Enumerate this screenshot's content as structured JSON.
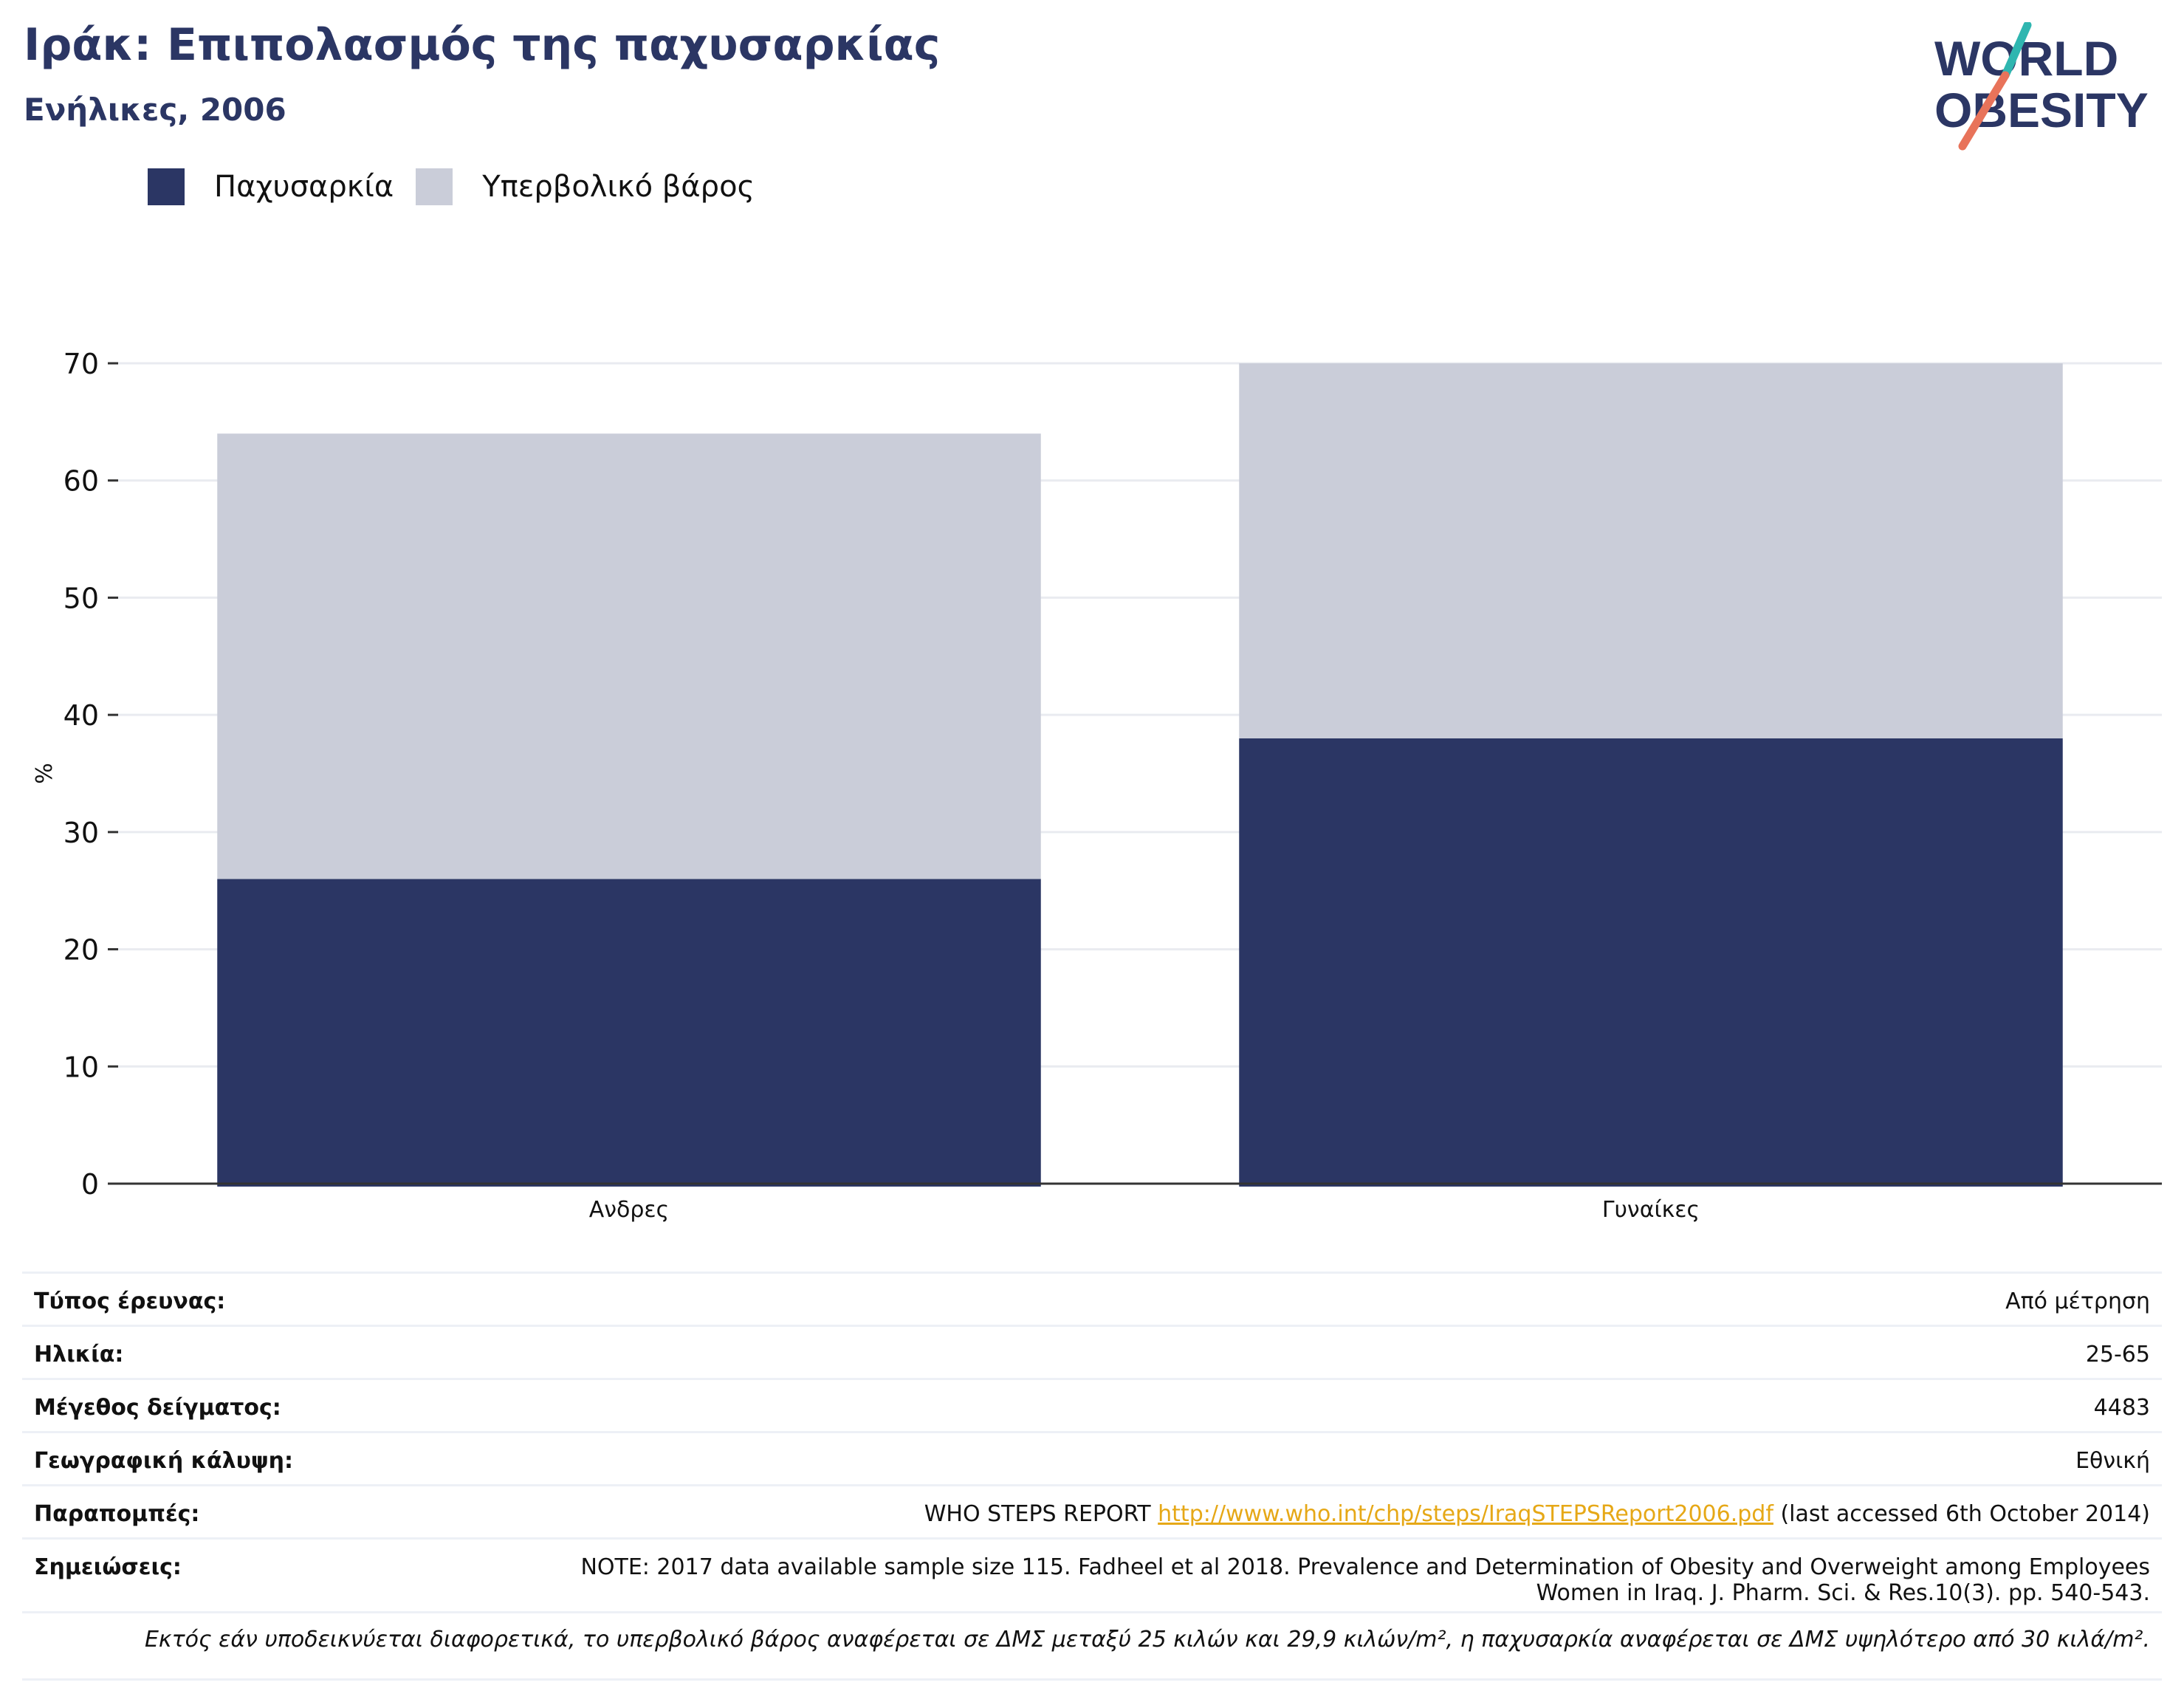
{
  "header": {
    "title": "Ιράκ: Επιπολασμός της παχυσαρκίας",
    "subtitle": "Ενήλικες, 2006"
  },
  "logo": {
    "line1": "WORLD",
    "line2": "OBESITY"
  },
  "colors": {
    "obesity": "#2b3664",
    "overweight": "#cacdd9",
    "accent_link": "#e6a817",
    "logo_teal": "#2fb6b0",
    "logo_coral": "#e8735a"
  },
  "chart_data": {
    "type": "bar",
    "stacked": true,
    "categories": [
      "Ανδρες",
      "Γυναίκες"
    ],
    "series": [
      {
        "name": "Παχυσαρκία",
        "values": [
          26,
          38
        ]
      },
      {
        "name": "Υπερβολικό βάρος",
        "values": [
          38,
          32
        ]
      }
    ],
    "ylabel": "%",
    "ylim": [
      0,
      70
    ],
    "yticks": [
      0,
      10,
      20,
      30,
      40,
      50,
      60,
      70
    ],
    "grid": true,
    "legend_position": "top-left"
  },
  "info": {
    "survey_type": {
      "label": "Τύπος έρευνας:",
      "value": "Από μέτρηση"
    },
    "age": {
      "label": "Ηλικία:",
      "value": "25-65"
    },
    "sample_size": {
      "label": "Μέγεθος δείγματος:",
      "value": "4483"
    },
    "coverage": {
      "label": "Γεωγραφική κάλυψη:",
      "value": "Εθνική"
    },
    "references": {
      "label": "Παραπομπές:",
      "prefix": "WHO STEPS REPORT",
      "link": "http://www.who.int/chp/steps/IraqSTEPSReport2006.pdf",
      "suffix": "(last accessed 6th October 2014)"
    },
    "notes": {
      "label": "Σημειώσεις:",
      "line1": "NOTE: 2017 data available sample size 115. Fadheel et al 2018. Prevalence and Determination of Obesity and Overweight among Employees",
      "line2": "Women in Iraq. J. Pharm. Sci. & Res.10(3). pp. 540-543."
    },
    "footnote": "Εκτός εάν υποδεικνύεται διαφορετικά, το υπερβολικό βάρος αναφέρεται σε ΔΜΣ μεταξύ 25 κιλών και 29,9 κιλών/m², η παχυσαρκία αναφέρεται σε ΔΜΣ υψηλότερο από 30 κιλά/m²."
  }
}
